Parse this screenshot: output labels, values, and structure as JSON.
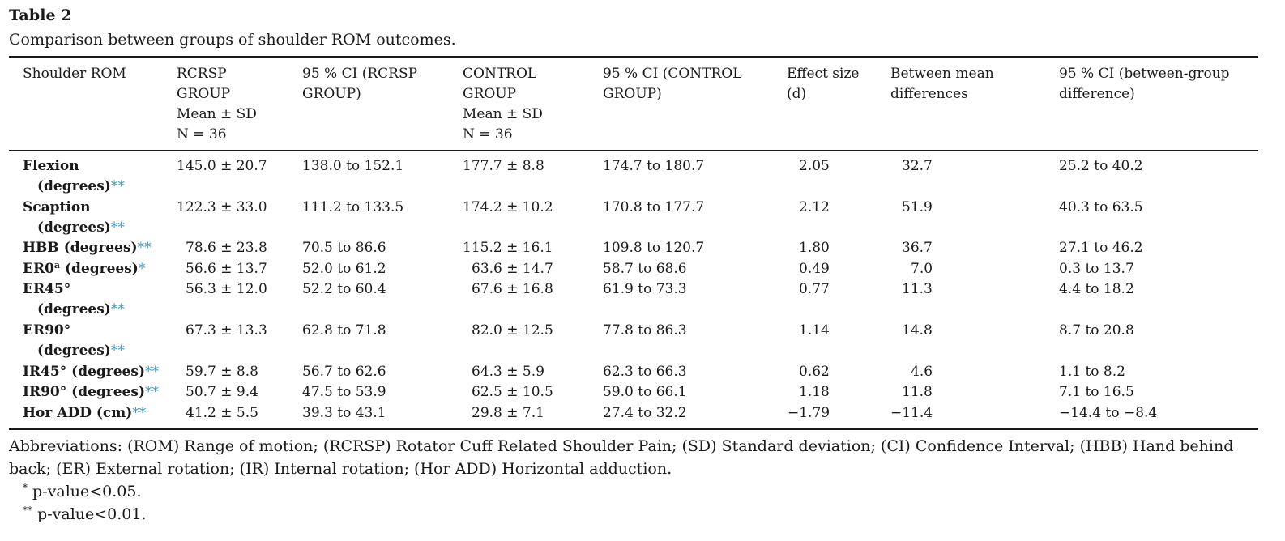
{
  "table_label": "Table 2",
  "caption": "Comparison between groups of shoulder ROM outcomes.",
  "headers": {
    "c1": [
      "Shoulder ROM"
    ],
    "c2": [
      "RCRSP",
      "GROUP",
      "Mean ± SD",
      "N = 36"
    ],
    "c3": [
      "95 % CI (RCRSP",
      "GROUP)"
    ],
    "c4": [
      "CONTROL",
      "GROUP",
      "Mean ± SD",
      "N = 36"
    ],
    "c5": [
      "95 % CI (CONTROL",
      "GROUP)"
    ],
    "c6": [
      "Effect size",
      "(d)"
    ],
    "c7": [
      "Between mean",
      "differences"
    ],
    "c8": [
      "95 % CI (between-group",
      "difference)"
    ]
  },
  "rows": [
    {
      "name1": "Flexion",
      "name2": "(degrees)",
      "sup": "",
      "sig": "**",
      "rcrsp": "145.0 ± 20.7",
      "ci_rcrsp": "138.0 to 152.1",
      "control": "177.7 ± 8.8",
      "ci_control": "174.7 to 180.7",
      "effect": "2.05",
      "diff": "32.7",
      "ci_diff": "25.2 to 40.2"
    },
    {
      "name1": "Scaption",
      "name2": "(degrees)",
      "sup": "",
      "sig": "**",
      "rcrsp": "122.3 ± 33.0",
      "ci_rcrsp": "111.2 to 133.5",
      "control": "174.2 ± 10.2",
      "ci_control": "170.8 to 177.7",
      "effect": "2.12",
      "diff": "51.9",
      "ci_diff": "40.3 to 63.5"
    },
    {
      "name1": "HBB (degrees)",
      "name2": "",
      "sup": "",
      "sig": "**",
      "rcrsp": "78.6 ± 23.8",
      "ci_rcrsp": "70.5 to 86.6",
      "control": "115.2 ± 16.1",
      "ci_control": "109.8 to 120.7",
      "effect": "1.80",
      "diff": "36.7",
      "ci_diff": "27.1 to 46.2"
    },
    {
      "name1": "ER0",
      "name2": "",
      "sup": "a",
      "name1b": " (degrees)",
      "sig": "*",
      "rcrsp": "56.6 ± 13.7",
      "ci_rcrsp": "52.0 to 61.2",
      "control": "63.6 ± 14.7",
      "ci_control": "58.7 to 68.6",
      "effect": "0.49",
      "diff": "7.0",
      "ci_diff": "0.3 to 13.7"
    },
    {
      "name1": "ER45°",
      "name2": "(degrees)",
      "sup": "",
      "sig": "**",
      "rcrsp": "56.3 ± 12.0",
      "ci_rcrsp": "52.2 to 60.4",
      "control": "67.6 ± 16.8",
      "ci_control": "61.9 to 73.3",
      "effect": "0.77",
      "diff": "11.3",
      "ci_diff": "4.4 to 18.2"
    },
    {
      "name1": "ER90°",
      "name2": "(degrees)",
      "sup": "",
      "sig": "**",
      "rcrsp": "67.3 ± 13.3",
      "ci_rcrsp": "62.8 to 71.8",
      "control": "82.0 ± 12.5",
      "ci_control": "77.8 to 86.3",
      "effect": "1.14",
      "diff": "14.8",
      "ci_diff": "8.7 to 20.8"
    },
    {
      "name1": "IR45° (degrees)",
      "name2": "",
      "sup": "",
      "sig": "**",
      "rcrsp": "59.7 ± 8.8",
      "ci_rcrsp": "56.7 to 62.6",
      "control": "64.3 ± 5.9",
      "ci_control": "62.3 to 66.3",
      "effect": "0.62",
      "diff": "4.6",
      "ci_diff": "1.1 to 8.2"
    },
    {
      "name1": "IR90° (degrees)",
      "name2": "",
      "sup": "",
      "sig": "**",
      "rcrsp": "50.7 ± 9.4",
      "ci_rcrsp": "47.5 to 53.9",
      "control": "62.5 ± 10.5",
      "ci_control": "59.0 to 66.1",
      "effect": "1.18",
      "diff": "11.8",
      "ci_diff": "7.1 to 16.5"
    },
    {
      "name1": "Hor ADD (cm)",
      "name2": "",
      "sup": "",
      "sig": "**",
      "rcrsp": "41.2 ± 5.5",
      "ci_rcrsp": "39.3 to 43.1",
      "control": "29.8 ± 7.1",
      "ci_control": "27.4 to 32.2",
      "effect": "−1.79",
      "diff": "−11.4",
      "ci_diff": "−14.4 to −8.4"
    }
  ],
  "abbreviations": "Abbreviations: (ROM) Range of motion; (RCRSP) Rotator Cuff Related Shoulder Pain; (SD) Standard deviation; (CI) Confidence Interval; (HBB) Hand behind back; (ER) External rotation; (IR) Internal rotation; (Hor ADD) Horizontal adduction.",
  "footnotes": [
    {
      "mark": "*",
      "text": "p-value<0.05."
    },
    {
      "mark": "**",
      "text": "p-value<0.01."
    }
  ],
  "colors": {
    "significance_marker": "#3d9bbf",
    "text": "#1a1a1a"
  }
}
